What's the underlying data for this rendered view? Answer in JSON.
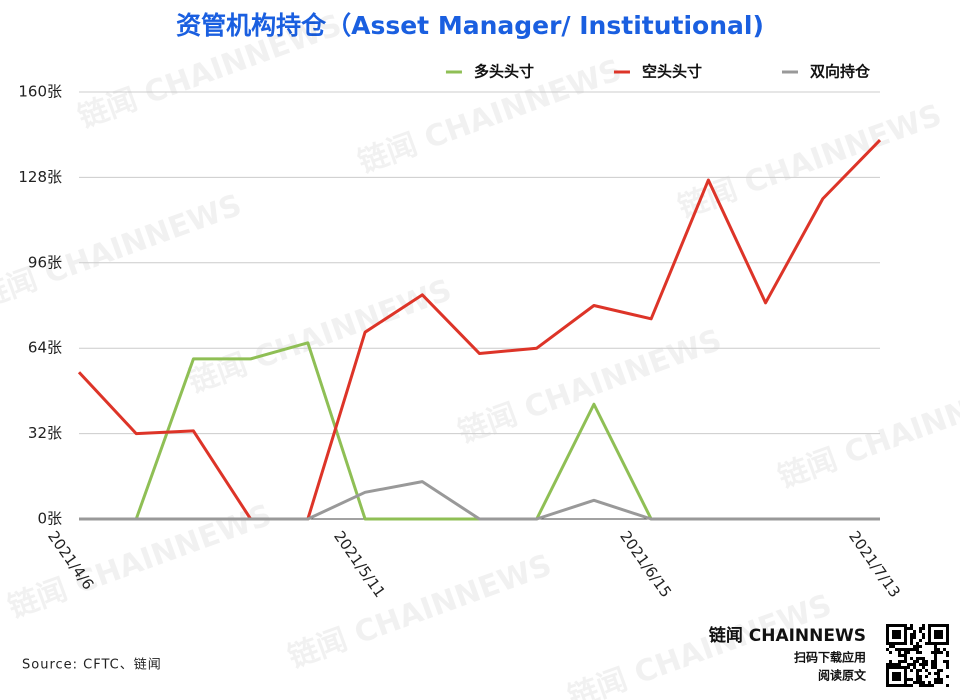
{
  "chart_data": {
    "type": "line",
    "title": "资管机构持仓（Asset Manager/ Institutional)",
    "categories": [
      "2021/4/6",
      null,
      null,
      null,
      null,
      "2021/5/11",
      null,
      null,
      null,
      null,
      "2021/6/15",
      null,
      null,
      null,
      "2021/7/13"
    ],
    "series": [
      {
        "name": "多头头寸",
        "color": "#8fbf55",
        "values": [
          0,
          0,
          60,
          60,
          66,
          0,
          0,
          0,
          0,
          43,
          0,
          0,
          0,
          0,
          0
        ]
      },
      {
        "name": "空头头寸",
        "color": "#dd3428",
        "values": [
          55,
          32,
          33,
          0,
          0,
          70,
          84,
          62,
          64,
          80,
          75,
          127,
          81,
          120,
          142
        ]
      },
      {
        "name": "双向持仓",
        "color": "#999999",
        "values": [
          0,
          0,
          0,
          0,
          0,
          10,
          14,
          0,
          0,
          7,
          0,
          0,
          0,
          0,
          0
        ]
      }
    ],
    "ylim": [
      0,
      160
    ],
    "yticks": [
      {
        "value": 0,
        "label": "0张"
      },
      {
        "value": 32,
        "label": "32张"
      },
      {
        "value": 64,
        "label": "64张"
      },
      {
        "value": 96,
        "label": "96张"
      },
      {
        "value": 128,
        "label": "128张"
      },
      {
        "value": 160,
        "label": "160张"
      }
    ],
    "grid": true,
    "legend": "top-right",
    "source": "Source: CFTC、链闻",
    "watermark": "链闻 CHAINNEWS",
    "brand": "链闻 CHAINNEWS",
    "qr_caption": [
      "扫码下载应用",
      "阅读原文"
    ]
  }
}
